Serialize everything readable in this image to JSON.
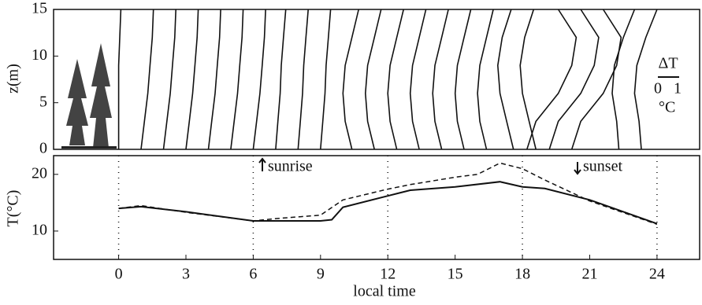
{
  "chart_data": [
    {
      "type": "profile",
      "ylabel": "z(m)",
      "xlim": [
        -2.9,
        25.9
      ],
      "ylim": [
        0,
        15
      ],
      "yticks": [
        0,
        5,
        10,
        15
      ],
      "z": [
        0,
        3,
        6,
        9,
        12,
        15
      ],
      "color": "#111111",
      "scale_label": "ΔT",
      "scale_ticks": [
        0,
        1
      ],
      "scale_unit": "°C",
      "profiles": [
        [
          0,
          0,
          0,
          0,
          0.05,
          0.1
        ],
        [
          1,
          1.15,
          1.3,
          1.4,
          1.5,
          1.55
        ],
        [
          2,
          2.15,
          2.3,
          2.4,
          2.5,
          2.55
        ],
        [
          3,
          3.15,
          3.3,
          3.4,
          3.5,
          3.55
        ],
        [
          4,
          4.15,
          4.3,
          4.4,
          4.5,
          4.55
        ],
        [
          5,
          5.15,
          5.3,
          5.4,
          5.5,
          5.55
        ],
        [
          6,
          6.15,
          6.3,
          6.4,
          6.5,
          6.55
        ],
        [
          7,
          7.1,
          7.2,
          7.25,
          7.35,
          7.45
        ],
        [
          8,
          8.1,
          8.2,
          8.25,
          8.35,
          8.45
        ],
        [
          9,
          9.1,
          9.2,
          9.25,
          9.35,
          9.45
        ],
        [
          10.4,
          10.1,
          10,
          10.1,
          10.4,
          10.7
        ],
        [
          11.4,
          11.1,
          11,
          11.1,
          11.4,
          11.7
        ],
        [
          12.4,
          12.1,
          12,
          12.1,
          12.4,
          12.7
        ],
        [
          13.4,
          13.1,
          13,
          13.1,
          13.4,
          13.7
        ],
        [
          14.4,
          14.1,
          14,
          14.1,
          14.4,
          14.7
        ],
        [
          15.4,
          15.1,
          15,
          15.1,
          15.4,
          15.7
        ],
        [
          16.4,
          16.1,
          16,
          16.1,
          16.4,
          16.7
        ],
        [
          17.6,
          17.3,
          17,
          16.9,
          17.1,
          17.5
        ],
        [
          18.6,
          18.3,
          18,
          17.9,
          18.1,
          18.5
        ],
        [
          18.2,
          18.6,
          19.6,
          20.2,
          20.4,
          19.6
        ],
        [
          19.2,
          19.6,
          20.6,
          21.2,
          21.4,
          20.6
        ],
        [
          20.2,
          20.6,
          21.6,
          22.2,
          22.4,
          21.6
        ],
        [
          22.3,
          22.2,
          22,
          22.1,
          22.5,
          23
        ],
        [
          23.3,
          23.2,
          23,
          23.1,
          23.5,
          24
        ]
      ]
    },
    {
      "type": "line",
      "ylabel": "T(°C)",
      "xlabel": "local time",
      "xlim": [
        -2.9,
        25.9
      ],
      "ylim": [
        5,
        23.3
      ],
      "yticks": [
        10,
        20
      ],
      "xticks": [
        0,
        3,
        6,
        9,
        12,
        15,
        18,
        21,
        24
      ],
      "grid_x": [
        0,
        6,
        12,
        18,
        24
      ],
      "annotations": [
        "sunrise",
        "sunset"
      ],
      "series": [
        {
          "color": "#111111",
          "dash": false,
          "x": [
            0,
            1,
            3,
            6,
            9,
            9.5,
            10,
            12,
            13,
            15,
            17,
            18,
            19,
            21,
            24
          ],
          "values": [
            14,
            14.3,
            13.4,
            11.8,
            11.8,
            12,
            14.2,
            16.2,
            17.2,
            17.8,
            18.7,
            17.8,
            17.5,
            15.5,
            11.3
          ]
        },
        {
          "color": "#111111",
          "dash": true,
          "x": [
            0,
            1,
            3,
            6,
            7,
            9,
            10,
            12,
            13,
            15,
            16,
            17,
            18,
            19,
            21,
            24
          ],
          "values": [
            14,
            14.5,
            13.3,
            11.8,
            12.2,
            12.8,
            15.5,
            17.4,
            18.2,
            19.5,
            20,
            22,
            21,
            19,
            15.3,
            11.2
          ]
        }
      ]
    }
  ]
}
